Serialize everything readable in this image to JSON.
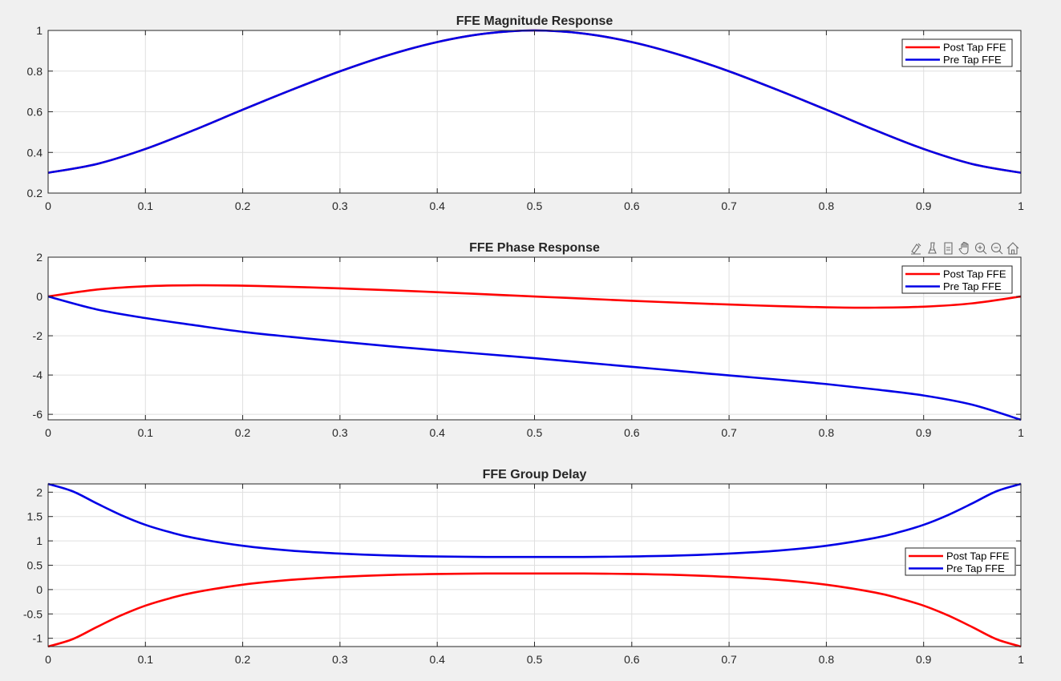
{
  "chart_data": [
    {
      "type": "line",
      "title": "FFE Magnitude Response",
      "xlim": [
        0,
        1
      ],
      "ylim": [
        0.2,
        1
      ],
      "xticks": [
        0,
        0.1,
        0.2,
        0.3,
        0.4,
        0.5,
        0.6,
        0.7,
        0.8,
        0.9,
        1
      ],
      "xtick_labels": [
        "0",
        "0.1",
        "0.2",
        "0.3",
        "0.4",
        "0.5",
        "0.6",
        "0.7",
        "0.8",
        "0.9",
        "1"
      ],
      "yticks": [
        0.2,
        0.4,
        0.6,
        0.8,
        1
      ],
      "ytick_labels": [
        "0.2",
        "0.4",
        "0.6",
        "0.8",
        "1"
      ],
      "grid": true,
      "legend_position": "top-right",
      "x": [
        0,
        0.05,
        0.1,
        0.15,
        0.2,
        0.25,
        0.3,
        0.35,
        0.4,
        0.45,
        0.5,
        0.55,
        0.6,
        0.65,
        0.7,
        0.75,
        0.8,
        0.85,
        0.9,
        0.95,
        1
      ],
      "series": [
        {
          "name": "Post Tap FFE",
          "color": "#ff0000",
          "values": [
            0.3,
            0.343,
            0.417,
            0.51,
            0.61,
            0.707,
            0.799,
            0.879,
            0.943,
            0.985,
            1,
            0.985,
            0.943,
            0.879,
            0.799,
            0.707,
            0.61,
            0.51,
            0.417,
            0.343,
            0.3
          ]
        },
        {
          "name": "Pre Tap FFE",
          "color": "#0000e6",
          "values": [
            0.3,
            0.343,
            0.417,
            0.51,
            0.61,
            0.707,
            0.799,
            0.879,
            0.943,
            0.985,
            1,
            0.985,
            0.943,
            0.879,
            0.799,
            0.707,
            0.61,
            0.51,
            0.417,
            0.343,
            0.3
          ]
        }
      ]
    },
    {
      "type": "line",
      "title": "FFE Phase Response",
      "xlim": [
        0,
        1
      ],
      "ylim": [
        -6.28,
        2
      ],
      "xticks": [
        0,
        0.1,
        0.2,
        0.3,
        0.4,
        0.5,
        0.6,
        0.7,
        0.8,
        0.9,
        1
      ],
      "xtick_labels": [
        "0",
        "0.1",
        "0.2",
        "0.3",
        "0.4",
        "0.5",
        "0.6",
        "0.7",
        "0.8",
        "0.9",
        "1"
      ],
      "yticks": [
        -6,
        -4,
        -2,
        0,
        2
      ],
      "ytick_labels": [
        "-6",
        "-4",
        "-2",
        "0",
        "2"
      ],
      "grid": true,
      "legend_position": "top-right",
      "x": [
        0,
        0.05,
        0.1,
        0.15,
        0.2,
        0.25,
        0.3,
        0.35,
        0.4,
        0.45,
        0.5,
        0.55,
        0.6,
        0.65,
        0.7,
        0.75,
        0.8,
        0.85,
        0.9,
        0.95,
        1
      ],
      "series": [
        {
          "name": "Post Tap FFE",
          "color": "#ff0000",
          "values": [
            0,
            0.35,
            0.52,
            0.57,
            0.55,
            0.49,
            0.41,
            0.32,
            0.22,
            0.11,
            0,
            -0.11,
            -0.22,
            -0.32,
            -0.41,
            -0.49,
            -0.55,
            -0.57,
            -0.52,
            -0.35,
            0
          ]
        },
        {
          "name": "Pre Tap FFE",
          "color": "#0000e6",
          "values": [
            0,
            -0.66,
            -1.1,
            -1.46,
            -1.8,
            -2.06,
            -2.3,
            -2.53,
            -2.74,
            -2.94,
            -3.14,
            -3.36,
            -3.58,
            -3.8,
            -4.02,
            -4.23,
            -4.46,
            -4.73,
            -5.04,
            -5.51,
            -6.28
          ]
        }
      ]
    },
    {
      "type": "line",
      "title": "FFE Group Delay",
      "xlim": [
        0,
        1
      ],
      "ylim": [
        -1.17,
        2.17
      ],
      "xticks": [
        0,
        0.1,
        0.2,
        0.3,
        0.4,
        0.5,
        0.6,
        0.7,
        0.8,
        0.9,
        1
      ],
      "xtick_labels": [
        "0",
        "0.1",
        "0.2",
        "0.3",
        "0.4",
        "0.5",
        "0.6",
        "0.7",
        "0.8",
        "0.9",
        "1"
      ],
      "yticks": [
        -1,
        -0.5,
        0,
        0.5,
        1,
        1.5,
        2
      ],
      "ytick_labels": [
        "-1",
        "-0.5",
        "0",
        "0.5",
        "1",
        "1.5",
        "2"
      ],
      "grid": true,
      "legend_position": "middle-right",
      "x": [
        0,
        0.025,
        0.05,
        0.075,
        0.1,
        0.125,
        0.15,
        0.2,
        0.25,
        0.3,
        0.35,
        0.4,
        0.45,
        0.5,
        0.55,
        0.6,
        0.65,
        0.7,
        0.75,
        0.8,
        0.85,
        0.875,
        0.9,
        0.925,
        0.95,
        0.975,
        1
      ],
      "series": [
        {
          "name": "Post Tap FFE",
          "color": "#ff0000",
          "values": [
            -1.17,
            -1.02,
            -0.77,
            -0.53,
            -0.33,
            -0.18,
            -0.06,
            0.1,
            0.2,
            0.26,
            0.3,
            0.32,
            0.33,
            0.33,
            0.33,
            0.32,
            0.3,
            0.26,
            0.2,
            0.1,
            -0.06,
            -0.18,
            -0.33,
            -0.53,
            -0.77,
            -1.02,
            -1.17
          ]
        },
        {
          "name": "Pre Tap FFE",
          "color": "#0000e6",
          "values": [
            2.17,
            2.02,
            1.77,
            1.53,
            1.33,
            1.18,
            1.06,
            0.9,
            0.8,
            0.74,
            0.7,
            0.68,
            0.67,
            0.67,
            0.67,
            0.68,
            0.7,
            0.74,
            0.8,
            0.9,
            1.06,
            1.18,
            1.33,
            1.53,
            1.77,
            2.02,
            2.17
          ]
        }
      ]
    }
  ],
  "toolbar": {
    "icons": [
      "data-tips-icon",
      "brush-icon",
      "data-cursor-icon",
      "pan-hand-icon",
      "zoom-in-icon",
      "zoom-out-icon",
      "home-icon"
    ]
  }
}
